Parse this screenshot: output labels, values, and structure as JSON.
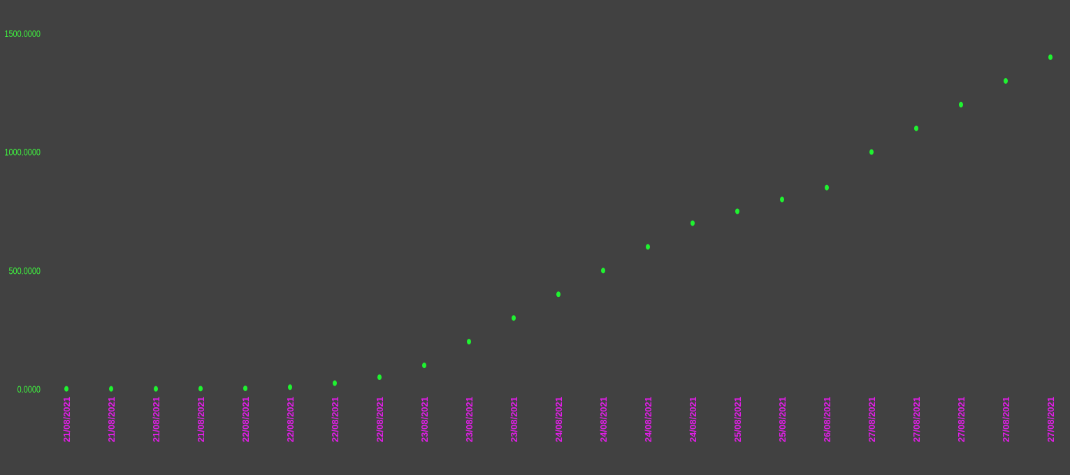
{
  "colors": {
    "background": "#414141",
    "point": "#1ff230",
    "y_tick_text": "#3ff23f",
    "x_tick_text": "#e21ee8"
  },
  "chart_data": {
    "type": "scatter",
    "title": "",
    "xlabel": "",
    "ylabel": "",
    "ylim": [
      0,
      1500
    ],
    "grid": false,
    "legend": "none",
    "y_ticks": [
      {
        "value": 0,
        "label": "0.0000"
      },
      {
        "value": 500,
        "label": "500.0000"
      },
      {
        "value": 1000,
        "label": "1000.0000"
      },
      {
        "value": 1500,
        "label": "1500.0000"
      }
    ],
    "x": [
      "21/08/2021",
      "21/08/2021",
      "21/08/2021",
      "21/08/2021",
      "22/08/2021",
      "22/08/2021",
      "22/08/2021",
      "22/08/2021",
      "23/08/2021",
      "23/08/2021",
      "23/08/2021",
      "24/08/2021",
      "24/08/2021",
      "24/08/2021",
      "24/08/2021",
      "25/08/2021",
      "25/08/2021",
      "26/08/2021",
      "27/08/2021",
      "27/08/2021",
      "27/08/2021",
      "27/08/2021",
      "27/08/2021"
    ],
    "values": [
      1,
      1,
      1,
      2,
      3,
      8,
      25,
      50,
      100,
      200,
      300,
      400,
      500,
      600,
      700,
      750,
      800,
      850,
      1000,
      1100,
      1200,
      1300,
      1400
    ]
  }
}
